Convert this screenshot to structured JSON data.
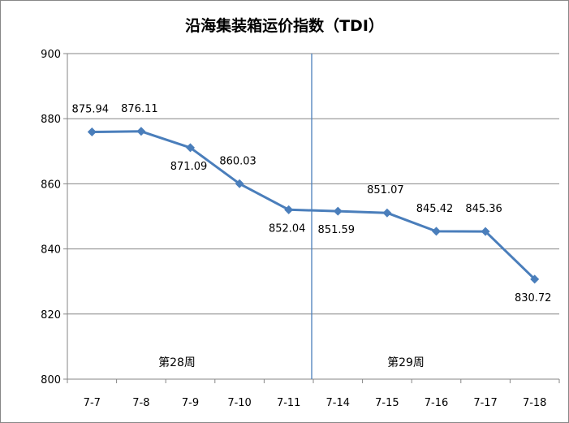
{
  "chart_data": {
    "type": "line",
    "title": "沿海集装箱运价指数（TDI）",
    "xlabel": "",
    "ylabel": "",
    "categories": [
      "7-7",
      "7-8",
      "7-9",
      "7-10",
      "7-11",
      "7-14",
      "7-15",
      "7-16",
      "7-17",
      "7-18"
    ],
    "series": [
      {
        "values": [
          875.94,
          876.11,
          871.09,
          860.03,
          852.04,
          851.59,
          851.07,
          845.42,
          845.36,
          830.72
        ]
      }
    ],
    "data_labels": [
      "875.94",
      "876.11",
      "871.09",
      "860.03",
      "852.04",
      "851.59",
      "851.07",
      "845.42",
      "845.36",
      "830.72"
    ],
    "ylim": [
      800,
      900
    ],
    "yticks": [
      800,
      820,
      840,
      860,
      880,
      900
    ],
    "ytick_labels": [
      "800",
      "820",
      "840",
      "860",
      "880",
      "900"
    ],
    "grid": "horizontal",
    "legend": "none",
    "divider_after_category": "7-11",
    "annotations": [
      "第28周",
      "第29周"
    ],
    "colors": {
      "line": "#4a7ebb",
      "marker": "#4a7ebb",
      "divider": "#4a7ebb",
      "grid": "#868686"
    }
  }
}
